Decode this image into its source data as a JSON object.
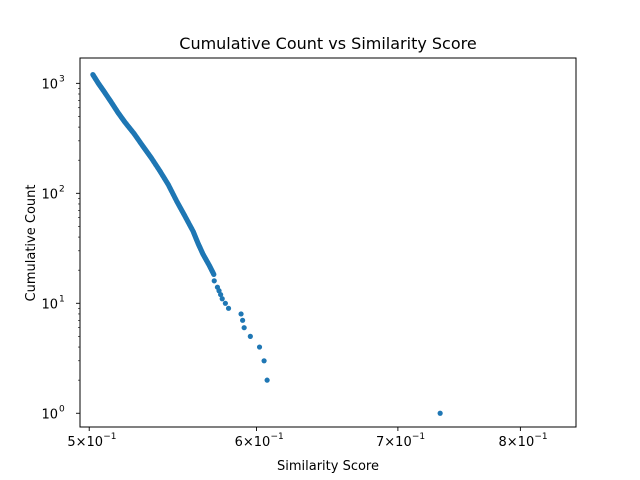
{
  "chart_data": {
    "type": "scatter",
    "title": "Cumulative Count vs Similarity Score",
    "xlabel": "Similarity Score",
    "ylabel": "Cumulative Count",
    "xscale": "log",
    "yscale": "log",
    "xlim": [
      0.495,
      0.85
    ],
    "ylim": [
      0.75,
      1700
    ],
    "grid": false,
    "marker_color": "#1f77b4",
    "x_ticks": [
      {
        "value": 0.5,
        "base": "5",
        "exp": "−1"
      },
      {
        "value": 0.6,
        "base": "6",
        "exp": "−1"
      },
      {
        "value": 0.7,
        "base": "7",
        "exp": "−1"
      },
      {
        "value": 0.8,
        "base": "8",
        "exp": "−1"
      }
    ],
    "y_ticks": [
      {
        "value": 1,
        "exp": "0"
      },
      {
        "value": 10,
        "exp": "1"
      },
      {
        "value": 100,
        "exp": "2"
      },
      {
        "value": 1000,
        "exp": "3"
      }
    ],
    "anchors": [
      [
        0.502,
        1200
      ],
      [
        0.505,
        1000
      ],
      [
        0.508,
        850
      ],
      [
        0.512,
        680
      ],
      [
        0.516,
        540
      ],
      [
        0.52,
        440
      ],
      [
        0.525,
        350
      ],
      [
        0.53,
        270
      ],
      [
        0.535,
        210
      ],
      [
        0.54,
        160
      ],
      [
        0.545,
        120
      ],
      [
        0.55,
        85
      ],
      [
        0.555,
        62
      ],
      [
        0.56,
        45
      ],
      [
        0.563,
        35
      ],
      [
        0.566,
        28
      ],
      [
        0.57,
        22
      ],
      [
        0.573,
        18
      ]
    ],
    "sparse_points": [
      [
        0.573,
        16
      ],
      [
        0.575,
        14
      ],
      [
        0.576,
        13
      ],
      [
        0.577,
        12
      ],
      [
        0.578,
        11
      ],
      [
        0.58,
        10
      ],
      [
        0.582,
        9
      ],
      [
        0.59,
        8
      ],
      [
        0.591,
        7
      ],
      [
        0.592,
        6
      ],
      [
        0.596,
        5
      ],
      [
        0.602,
        4
      ],
      [
        0.605,
        3
      ],
      [
        0.607,
        2
      ],
      [
        0.733,
        1
      ]
    ]
  }
}
